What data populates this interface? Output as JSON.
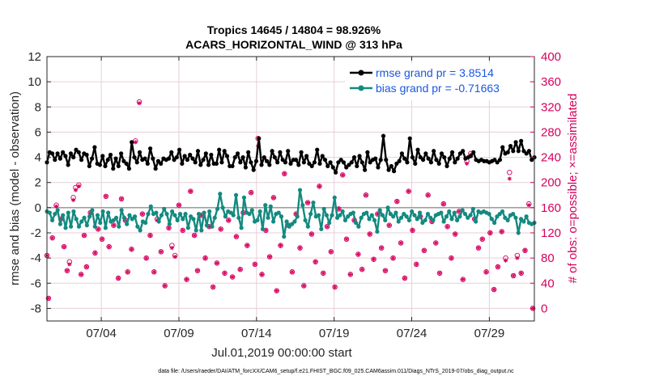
{
  "chart_data": {
    "type": "line",
    "title_line1": "Tropics 14645 / 14804 = 98.926%",
    "title_line2": "ACARS_HORIZONTAL_WIND @ 313 hPa",
    "xlabel": "Jul.01,2019 00:00:00 start",
    "ylabel": "rmse and bias (model - observation)",
    "ylabel_right": "# of obs: o=possible; ×=assimilated",
    "xlim": [
      0.5,
      31.9
    ],
    "ylim": [
      -9,
      12
    ],
    "ylim_right": [
      -20,
      400
    ],
    "x_ticks": [
      4,
      9,
      14,
      19,
      24,
      29
    ],
    "x_tick_labels": [
      "07/04",
      "07/09",
      "07/14",
      "07/19",
      "07/24",
      "07/29"
    ],
    "y_ticks": [
      -8,
      -6,
      -4,
      -2,
      0,
      2,
      4,
      6,
      8,
      10,
      12
    ],
    "y_tick_labels": [
      "-8",
      "-6",
      "-4",
      "-2",
      "0",
      "2",
      "4",
      "6",
      "8",
      "10",
      "12"
    ],
    "y_ticks_right": [
      0,
      40,
      80,
      120,
      160,
      200,
      240,
      280,
      320,
      360,
      400
    ],
    "y_tick_labels_right": [
      "0",
      "40",
      "80",
      "120",
      "160",
      "200",
      "240",
      "280",
      "320",
      "360",
      "400"
    ],
    "legend": {
      "placement": "top-right",
      "rmse_label": "rmse grand pr = 3.8514",
      "bias_label": "bias grand pr = -0.71663"
    },
    "colors": {
      "rmse": "#000000",
      "bias": "#138a80",
      "obs": "#d6005e",
      "grid": "#e6cfd8",
      "zero_line": "#a0a0a0"
    },
    "rmse": [
      3.6,
      4.4,
      4.3,
      3.8,
      4.3,
      3.9,
      4.4,
      4.1,
      3.4,
      4.3,
      4.0,
      4.6,
      4.4,
      3.8,
      4.3,
      4.2,
      3.3,
      3.9,
      4.8,
      3.5,
      3.4,
      4.1,
      3.3,
      3.8,
      4.2,
      3.1,
      3.9,
      3.3,
      4.3,
      3.7,
      3.5,
      3.1,
      5.2,
      4.0,
      3.6,
      4.4,
      3.8,
      3.9,
      3.5,
      4.7,
      3.9,
      3.1,
      3.7,
      3.5,
      3.9,
      3.8,
      3.9,
      4.4,
      3.8,
      4.0,
      4.6,
      3.5,
      4.1,
      3.8,
      4.2,
      3.9,
      3.6,
      4.5,
      3.4,
      3.8,
      4.3,
      3.4,
      4.2,
      3.5,
      3.5,
      4.6,
      3.6,
      4.5,
      4.1,
      3.3,
      3.3,
      4.0,
      4.3,
      3.6,
      4.0,
      3.2,
      4.4,
      3.6,
      3.0,
      3.7,
      5.5,
      3.4,
      4.0,
      3.7,
      3.4,
      4.5,
      4.0,
      3.6,
      4.4,
      3.8,
      3.6,
      4.5,
      3.5,
      3.8,
      3.8,
      3.4,
      4.4,
      3.6,
      4.1,
      3.5,
      3.3,
      3.6,
      4.6,
      3.5,
      4.1,
      3.8,
      3.3,
      3.6,
      3.2,
      2.8,
      3.6,
      3.8,
      3.6,
      3.2,
      3.4,
      3.6,
      4.0,
      3.3,
      4.1,
      3.6,
      3.0,
      4.4,
      3.6,
      3.8,
      3.9,
      3.2,
      3.8,
      5.7,
      3.8,
      3.0,
      3.3,
      2.9,
      3.5,
      3.7,
      4.3,
      3.9,
      3.6,
      5.5,
      4.0,
      3.5,
      4.6,
      4.0,
      3.8,
      4.3,
      3.9,
      3.6,
      4.5,
      3.8,
      3.5,
      4.3,
      4.0,
      3.3,
      3.9,
      4.4,
      3.6,
      3.9,
      4.3,
      4.5,
      3.9,
      4.0,
      4.1,
      4.4,
      3.8,
      3.7,
      3.8,
      3.7,
      3.7,
      3.6,
      3.7,
      3.8,
      3.6,
      3.8,
      4.8,
      4.3,
      4.4,
      4.9,
      4.5,
      5.2,
      4.5,
      5.3,
      4.5,
      4.3,
      4.5,
      3.8,
      4.0
    ],
    "bias": [
      -0.3,
      -0.4,
      -1.0,
      -0.5,
      -0.2,
      -1.3,
      -0.6,
      -1.6,
      -0.4,
      -1.5,
      -0.3,
      -0.9,
      -1.5,
      -1.1,
      -0.8,
      -1.4,
      -0.7,
      -0.2,
      -1.5,
      -0.6,
      -1.2,
      -0.3,
      -1.6,
      -0.4,
      -1.1,
      -1.0,
      -0.8,
      -1.5,
      -0.2,
      -0.8,
      -1.3,
      -0.6,
      -0.9,
      -0.7,
      -1.5,
      -1.8,
      -1.1,
      -1.2,
      -0.5,
      0.1,
      -0.5,
      -0.4,
      -1.1,
      -0.6,
      -0.1,
      -0.5,
      -1.3,
      -0.3,
      -0.6,
      -1.0,
      -0.5,
      -0.9,
      -0.5,
      -1.6,
      -0.7,
      -0.9,
      -1.8,
      -0.5,
      -1.8,
      -0.4,
      -1.4,
      -0.3,
      -1.5,
      -0.8,
      -0.1,
      1.1,
      0.0,
      -0.7,
      -0.3,
      -0.4,
      -0.6,
      1.0,
      -0.8,
      -1.6,
      0.8,
      -0.4,
      -0.5,
      -0.2,
      -1.1,
      -1.0,
      -0.3,
      -1.7,
      0.2,
      -0.8,
      0.1,
      -1.1,
      -0.5,
      -0.4,
      -0.7,
      -2.3,
      -1.1,
      -1.5,
      -1.3,
      -1.1,
      -0.7,
      1.4,
      0.2,
      -1.0,
      -1.5,
      -0.5,
      0.4,
      -0.7,
      -0.6,
      -1.7,
      -0.1,
      -0.6,
      -1.2,
      -0.6,
      0.8,
      -0.8,
      -0.6,
      -0.3,
      -1.0,
      -0.7,
      -0.5,
      -0.4,
      -1.2,
      -1.5,
      -0.8,
      -0.5,
      -0.4,
      -0.9,
      -0.6,
      -1.0,
      -1.9,
      -0.2,
      -0.6,
      -1.0,
      0.0,
      -0.5,
      -0.7,
      -0.4,
      -1.1,
      -0.8,
      -0.5,
      -0.7,
      -1.0,
      -0.3,
      -0.6,
      -0.9,
      -0.4,
      -1.2,
      -1.0,
      -0.5,
      -0.8,
      -1.0,
      -0.6,
      -0.5,
      -0.4,
      -1.1,
      -0.7,
      -0.3,
      -0.9,
      -0.4,
      -1.0,
      -0.7,
      -0.2,
      -0.5,
      -0.8,
      -0.6,
      -0.1,
      -1.1,
      -0.3,
      -0.4,
      -0.3,
      -0.4,
      -0.5,
      -0.9,
      -1.2,
      -0.7,
      -0.5,
      -0.3,
      -0.8,
      -1.0,
      -0.6,
      -0.5,
      -0.8,
      -2.0,
      -0.9,
      -1.1,
      -0.7,
      -1.2,
      -1.3,
      -1.2
    ],
    "obs_possible": [
      {
        "x": 0.5,
        "y": 84
      },
      {
        "x": 0.6,
        "y": 16
      },
      {
        "x": 0.85,
        "y": 112
      },
      {
        "x": 1.1,
        "y": 164
      },
      {
        "x": 1.4,
        "y": 142
      },
      {
        "x": 1.6,
        "y": 98
      },
      {
        "x": 1.8,
        "y": 60
      },
      {
        "x": 1.95,
        "y": 74
      },
      {
        "x": 2.2,
        "y": 176
      },
      {
        "x": 2.35,
        "y": 192
      },
      {
        "x": 2.55,
        "y": 196
      },
      {
        "x": 2.7,
        "y": 54
      },
      {
        "x": 2.9,
        "y": 116
      },
      {
        "x": 3.05,
        "y": 66
      },
      {
        "x": 3.3,
        "y": 152
      },
      {
        "x": 3.6,
        "y": 88
      },
      {
        "x": 3.8,
        "y": 126
      },
      {
        "x": 4.05,
        "y": 110
      },
      {
        "x": 4.3,
        "y": 178
      },
      {
        "x": 4.5,
        "y": 98
      },
      {
        "x": 4.8,
        "y": 132
      },
      {
        "x": 5.1,
        "y": 48
      },
      {
        "x": 5.3,
        "y": 174
      },
      {
        "x": 5.55,
        "y": 140
      },
      {
        "x": 5.7,
        "y": 58
      },
      {
        "x": 5.95,
        "y": 94
      },
      {
        "x": 6.2,
        "y": 266
      },
      {
        "x": 6.45,
        "y": 328
      },
      {
        "x": 6.65,
        "y": 150
      },
      {
        "x": 6.9,
        "y": 80
      },
      {
        "x": 7.15,
        "y": 116
      },
      {
        "x": 7.4,
        "y": 58
      },
      {
        "x": 7.6,
        "y": 142
      },
      {
        "x": 7.85,
        "y": 90
      },
      {
        "x": 8.1,
        "y": 36
      },
      {
        "x": 8.35,
        "y": 128
      },
      {
        "x": 8.55,
        "y": 100
      },
      {
        "x": 8.75,
        "y": 84
      },
      {
        "x": 9.0,
        "y": 164
      },
      {
        "x": 9.25,
        "y": 124
      },
      {
        "x": 9.5,
        "y": 46
      },
      {
        "x": 9.75,
        "y": 186
      },
      {
        "x": 10.0,
        "y": 116
      },
      {
        "x": 10.2,
        "y": 60
      },
      {
        "x": 10.45,
        "y": 148
      },
      {
        "x": 10.7,
        "y": 80
      },
      {
        "x": 10.95,
        "y": 130
      },
      {
        "x": 11.2,
        "y": 34
      },
      {
        "x": 11.45,
        "y": 72
      },
      {
        "x": 11.7,
        "y": 126
      },
      {
        "x": 11.95,
        "y": 56
      },
      {
        "x": 12.2,
        "y": 140
      },
      {
        "x": 12.45,
        "y": 50
      },
      {
        "x": 12.7,
        "y": 114
      },
      {
        "x": 12.95,
        "y": 62
      },
      {
        "x": 13.15,
        "y": 152
      },
      {
        "x": 13.4,
        "y": 100
      },
      {
        "x": 13.65,
        "y": 184
      },
      {
        "x": 13.9,
        "y": 70
      },
      {
        "x": 14.1,
        "y": 270
      },
      {
        "x": 14.35,
        "y": 54
      },
      {
        "x": 14.6,
        "y": 124
      },
      {
        "x": 14.85,
        "y": 82
      },
      {
        "x": 15.1,
        "y": 176
      },
      {
        "x": 15.3,
        "y": 28
      },
      {
        "x": 15.55,
        "y": 100
      },
      {
        "x": 15.8,
        "y": 214
      },
      {
        "x": 16.05,
        "y": 132
      },
      {
        "x": 16.3,
        "y": 58
      },
      {
        "x": 16.55,
        "y": 150
      },
      {
        "x": 16.8,
        "y": 96
      },
      {
        "x": 17.05,
        "y": 36
      },
      {
        "x": 17.3,
        "y": 168
      },
      {
        "x": 17.55,
        "y": 118
      },
      {
        "x": 17.8,
        "y": 74
      },
      {
        "x": 18.05,
        "y": 194
      },
      {
        "x": 18.3,
        "y": 56
      },
      {
        "x": 18.55,
        "y": 130
      },
      {
        "x": 18.8,
        "y": 90
      },
      {
        "x": 19.05,
        "y": 34
      },
      {
        "x": 19.3,
        "y": 158
      },
      {
        "x": 19.55,
        "y": 212
      },
      {
        "x": 19.8,
        "y": 110
      },
      {
        "x": 20.05,
        "y": 54
      },
      {
        "x": 20.3,
        "y": 140
      },
      {
        "x": 20.55,
        "y": 86
      },
      {
        "x": 20.8,
        "y": 62
      },
      {
        "x": 21.05,
        "y": 180
      },
      {
        "x": 21.3,
        "y": 118
      },
      {
        "x": 21.55,
        "y": 78
      },
      {
        "x": 21.8,
        "y": 150
      },
      {
        "x": 22.05,
        "y": 96
      },
      {
        "x": 22.3,
        "y": 60
      },
      {
        "x": 22.55,
        "y": 132
      },
      {
        "x": 22.8,
        "y": 80
      },
      {
        "x": 23.05,
        "y": 170
      },
      {
        "x": 23.3,
        "y": 104
      },
      {
        "x": 23.55,
        "y": 48
      },
      {
        "x": 23.8,
        "y": 186
      },
      {
        "x": 24.05,
        "y": 124
      },
      {
        "x": 24.3,
        "y": 70
      },
      {
        "x": 24.55,
        "y": 146
      },
      {
        "x": 24.8,
        "y": 92
      },
      {
        "x": 25.05,
        "y": 180
      },
      {
        "x": 25.3,
        "y": 138
      },
      {
        "x": 25.55,
        "y": 104
      },
      {
        "x": 25.8,
        "y": 56
      },
      {
        "x": 26.05,
        "y": 166
      },
      {
        "x": 26.3,
        "y": 130
      },
      {
        "x": 26.55,
        "y": 80
      },
      {
        "x": 26.8,
        "y": 118
      },
      {
        "x": 27.05,
        "y": 154
      },
      {
        "x": 27.3,
        "y": 46
      },
      {
        "x": 27.55,
        "y": 234
      },
      {
        "x": 27.8,
        "y": 246
      },
      {
        "x": 28.05,
        "y": 142
      },
      {
        "x": 28.3,
        "y": 96
      },
      {
        "x": 28.55,
        "y": 110
      },
      {
        "x": 28.8,
        "y": 58
      },
      {
        "x": 29.05,
        "y": 120
      },
      {
        "x": 29.3,
        "y": 30
      },
      {
        "x": 29.55,
        "y": 66
      },
      {
        "x": 29.8,
        "y": 122
      },
      {
        "x": 30.05,
        "y": 80
      },
      {
        "x": 30.3,
        "y": 216
      },
      {
        "x": 30.55,
        "y": 52
      },
      {
        "x": 30.8,
        "y": 84
      },
      {
        "x": 31.05,
        "y": 56
      },
      {
        "x": 31.3,
        "y": 92
      },
      {
        "x": 31.55,
        "y": 166
      },
      {
        "x": 31.8,
        "y": 0
      }
    ],
    "obs_assimilated": [
      {
        "x": 0.5,
        "y": 84
      },
      {
        "x": 0.6,
        "y": 16
      },
      {
        "x": 0.85,
        "y": 112
      },
      {
        "x": 1.1,
        "y": 162
      },
      {
        "x": 1.4,
        "y": 142
      },
      {
        "x": 1.6,
        "y": 98
      },
      {
        "x": 1.8,
        "y": 60
      },
      {
        "x": 1.95,
        "y": 70
      },
      {
        "x": 2.2,
        "y": 172
      },
      {
        "x": 2.35,
        "y": 188
      },
      {
        "x": 2.55,
        "y": 194
      },
      {
        "x": 2.7,
        "y": 54
      },
      {
        "x": 2.9,
        "y": 116
      },
      {
        "x": 3.05,
        "y": 66
      },
      {
        "x": 3.3,
        "y": 152
      },
      {
        "x": 3.6,
        "y": 88
      },
      {
        "x": 3.8,
        "y": 126
      },
      {
        "x": 4.05,
        "y": 110
      },
      {
        "x": 4.3,
        "y": 178
      },
      {
        "x": 4.5,
        "y": 98
      },
      {
        "x": 4.8,
        "y": 132
      },
      {
        "x": 5.1,
        "y": 48
      },
      {
        "x": 5.3,
        "y": 174
      },
      {
        "x": 5.55,
        "y": 140
      },
      {
        "x": 5.7,
        "y": 58
      },
      {
        "x": 5.95,
        "y": 94
      },
      {
        "x": 6.2,
        "y": 264
      },
      {
        "x": 6.45,
        "y": 326
      },
      {
        "x": 6.65,
        "y": 150
      },
      {
        "x": 6.9,
        "y": 80
      },
      {
        "x": 7.15,
        "y": 116
      },
      {
        "x": 7.4,
        "y": 58
      },
      {
        "x": 7.6,
        "y": 140
      },
      {
        "x": 7.85,
        "y": 90
      },
      {
        "x": 8.1,
        "y": 36
      },
      {
        "x": 8.35,
        "y": 128
      },
      {
        "x": 8.55,
        "y": 96
      },
      {
        "x": 8.75,
        "y": 82
      },
      {
        "x": 9.0,
        "y": 164
      },
      {
        "x": 9.25,
        "y": 124
      },
      {
        "x": 9.5,
        "y": 46
      },
      {
        "x": 9.75,
        "y": 186
      },
      {
        "x": 10.0,
        "y": 116
      },
      {
        "x": 10.2,
        "y": 60
      },
      {
        "x": 10.45,
        "y": 148
      },
      {
        "x": 10.7,
        "y": 80
      },
      {
        "x": 10.95,
        "y": 130
      },
      {
        "x": 11.2,
        "y": 34
      },
      {
        "x": 11.45,
        "y": 72
      },
      {
        "x": 11.7,
        "y": 126
      },
      {
        "x": 11.95,
        "y": 56
      },
      {
        "x": 12.2,
        "y": 140
      },
      {
        "x": 12.45,
        "y": 50
      },
      {
        "x": 12.7,
        "y": 114
      },
      {
        "x": 12.95,
        "y": 62
      },
      {
        "x": 13.15,
        "y": 152
      },
      {
        "x": 13.4,
        "y": 100
      },
      {
        "x": 13.65,
        "y": 184
      },
      {
        "x": 13.9,
        "y": 70
      },
      {
        "x": 14.1,
        "y": 258
      },
      {
        "x": 14.35,
        "y": 54
      },
      {
        "x": 14.6,
        "y": 124
      },
      {
        "x": 14.85,
        "y": 82
      },
      {
        "x": 15.1,
        "y": 176
      },
      {
        "x": 15.3,
        "y": 28
      },
      {
        "x": 15.55,
        "y": 100
      },
      {
        "x": 15.8,
        "y": 214
      },
      {
        "x": 16.05,
        "y": 132
      },
      {
        "x": 16.3,
        "y": 58
      },
      {
        "x": 16.55,
        "y": 150
      },
      {
        "x": 16.8,
        "y": 96
      },
      {
        "x": 17.05,
        "y": 36
      },
      {
        "x": 17.3,
        "y": 168
      },
      {
        "x": 17.55,
        "y": 118
      },
      {
        "x": 17.8,
        "y": 74
      },
      {
        "x": 18.05,
        "y": 194
      },
      {
        "x": 18.3,
        "y": 56
      },
      {
        "x": 18.55,
        "y": 130
      },
      {
        "x": 18.8,
        "y": 90
      },
      {
        "x": 19.05,
        "y": 34
      },
      {
        "x": 19.3,
        "y": 158
      },
      {
        "x": 19.55,
        "y": 212
      },
      {
        "x": 19.8,
        "y": 110
      },
      {
        "x": 20.05,
        "y": 54
      },
      {
        "x": 20.3,
        "y": 140
      },
      {
        "x": 20.55,
        "y": 86
      },
      {
        "x": 20.8,
        "y": 62
      },
      {
        "x": 21.05,
        "y": 180
      },
      {
        "x": 21.3,
        "y": 118
      },
      {
        "x": 21.55,
        "y": 78
      },
      {
        "x": 21.8,
        "y": 150
      },
      {
        "x": 22.05,
        "y": 96
      },
      {
        "x": 22.3,
        "y": 60
      },
      {
        "x": 22.55,
        "y": 132
      },
      {
        "x": 22.8,
        "y": 80
      },
      {
        "x": 23.05,
        "y": 170
      },
      {
        "x": 23.3,
        "y": 104
      },
      {
        "x": 23.55,
        "y": 48
      },
      {
        "x": 23.8,
        "y": 186
      },
      {
        "x": 24.05,
        "y": 124
      },
      {
        "x": 24.3,
        "y": 70
      },
      {
        "x": 24.55,
        "y": 146
      },
      {
        "x": 24.8,
        "y": 92
      },
      {
        "x": 25.05,
        "y": 180
      },
      {
        "x": 25.3,
        "y": 138
      },
      {
        "x": 25.55,
        "y": 104
      },
      {
        "x": 25.8,
        "y": 56
      },
      {
        "x": 26.05,
        "y": 166
      },
      {
        "x": 26.3,
        "y": 130
      },
      {
        "x": 26.55,
        "y": 80
      },
      {
        "x": 26.8,
        "y": 118
      },
      {
        "x": 27.05,
        "y": 154
      },
      {
        "x": 27.3,
        "y": 46
      },
      {
        "x": 27.55,
        "y": 230
      },
      {
        "x": 27.8,
        "y": 244
      },
      {
        "x": 28.05,
        "y": 142
      },
      {
        "x": 28.3,
        "y": 96
      },
      {
        "x": 28.55,
        "y": 110
      },
      {
        "x": 28.8,
        "y": 58
      },
      {
        "x": 29.05,
        "y": 120
      },
      {
        "x": 29.3,
        "y": 30
      },
      {
        "x": 29.55,
        "y": 66
      },
      {
        "x": 29.8,
        "y": 122
      },
      {
        "x": 30.05,
        "y": 76
      },
      {
        "x": 30.3,
        "y": 206
      },
      {
        "x": 30.55,
        "y": 52
      },
      {
        "x": 30.8,
        "y": 80
      },
      {
        "x": 31.05,
        "y": 56
      },
      {
        "x": 31.3,
        "y": 92
      },
      {
        "x": 31.55,
        "y": 164
      },
      {
        "x": 31.8,
        "y": 0
      }
    ],
    "footer": "data file: /Users/raeder/DAI/ATM_forcXX/CAM6_setup/f.e21.FHIST_BGC.f09_025.CAM6assim.011/Diags_NTrS_2019-07/obs_diag_output.nc"
  }
}
